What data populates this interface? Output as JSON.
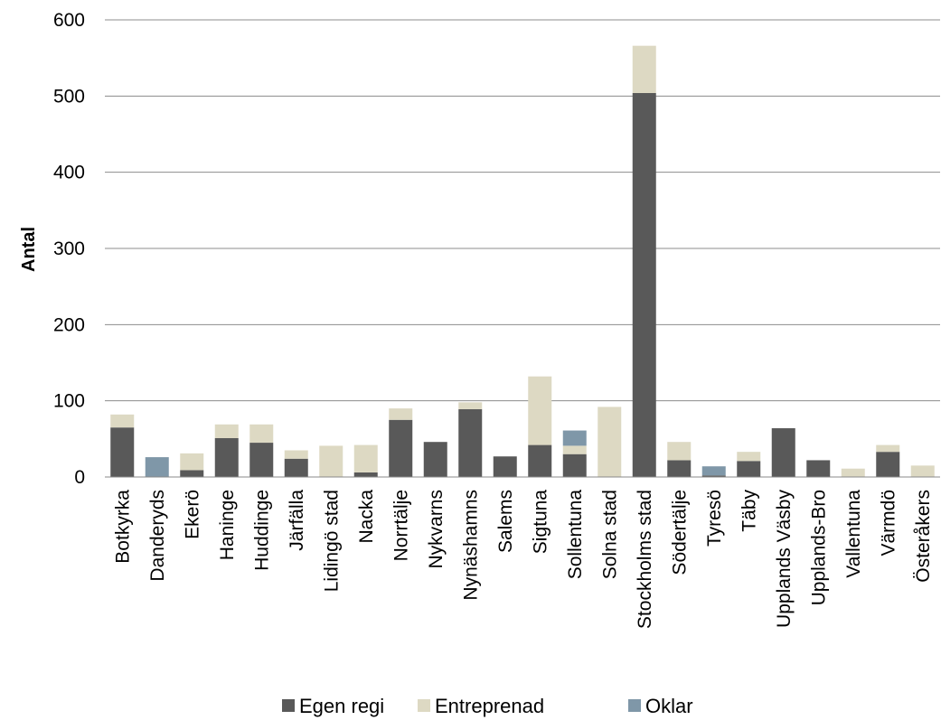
{
  "chart_data": {
    "type": "bar",
    "stacked": true,
    "title": "",
    "xlabel": "",
    "ylabel": "Antal",
    "ylim": [
      0,
      600
    ],
    "yticks": [
      0,
      100,
      200,
      300,
      400,
      500,
      600
    ],
    "grid": true,
    "legend_position": "bottom",
    "categories": [
      "Botkyrka",
      "Danderyds",
      "Ekerö",
      "Haninge",
      "Huddinge",
      "Järfälla",
      "Lidingö stad",
      "Nacka",
      "Norrtälje",
      "Nykvarns",
      "Nynäshamns",
      "Salems",
      "Sigtuna",
      "Sollentuna",
      "Solna stad",
      "Stockholms stad",
      "Södertälje",
      "Tyresö",
      "Täby",
      "Upplands Väsby",
      "Upplands-Bro",
      "Vallentuna",
      "Värmdö",
      "Österåkers"
    ],
    "series": [
      {
        "name": "Egen regi",
        "color": "#595959",
        "values": [
          65,
          0,
          9,
          51,
          45,
          24,
          0,
          6,
          75,
          46,
          89,
          27,
          42,
          30,
          0,
          504,
          22,
          2,
          21,
          64,
          22,
          0,
          33,
          0
        ]
      },
      {
        "name": "Entreprenad",
        "color": "#ddd9c3",
        "values": [
          17,
          0,
          22,
          18,
          24,
          11,
          41,
          36,
          15,
          0,
          9,
          0,
          90,
          11,
          92,
          62,
          24,
          0,
          12,
          0,
          0,
          11,
          9,
          15
        ]
      },
      {
        "name": "Oklar",
        "color": "#7f97a8",
        "values": [
          0,
          26,
          0,
          0,
          0,
          0,
          0,
          0,
          0,
          0,
          0,
          0,
          0,
          20,
          0,
          0,
          0,
          12,
          0,
          0,
          0,
          0,
          0,
          0
        ]
      }
    ]
  }
}
